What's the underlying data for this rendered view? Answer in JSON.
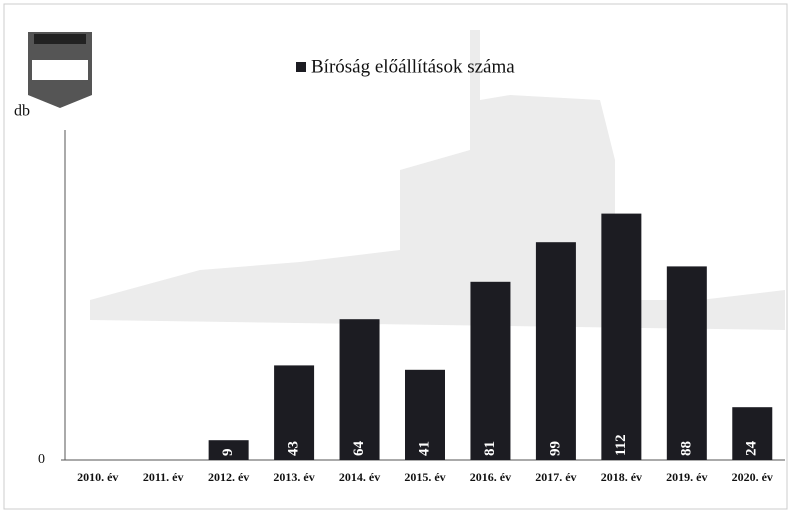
{
  "chart_data": {
    "type": "bar",
    "y_label": "db",
    "categories": [
      "2010. év",
      "2011. év",
      "2012. év",
      "2013. év",
      "2014. év",
      "2015. év",
      "2016. év",
      "2017. év",
      "2018. év",
      "2019. év",
      "2020. év"
    ],
    "series": [
      {
        "name": "Bíróság előállítások száma",
        "color": "#1c1c22",
        "values": [
          null,
          null,
          9,
          43,
          64,
          41,
          81,
          99,
          112,
          88,
          24
        ]
      }
    ],
    "ylim": [
      0,
      150
    ],
    "yticks": [
      0
    ],
    "legend": "top",
    "data_labels": true
  }
}
